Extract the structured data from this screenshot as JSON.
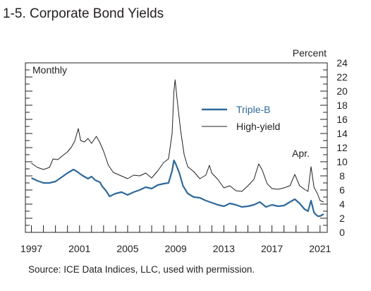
{
  "chart_data": {
    "type": "line",
    "title": "1-5. Corporate Bond Yields",
    "frequency_label": "Monthly",
    "y_unit": "Percent",
    "xlim": [
      1996.5,
      2021.6
    ],
    "ylim": [
      0,
      24
    ],
    "x_ticks": [
      "1997",
      "2001",
      "2005",
      "2009",
      "2013",
      "2017",
      "2021"
    ],
    "y_ticks": [
      "0",
      "2",
      "4",
      "6",
      "8",
      "10",
      "12",
      "14",
      "16",
      "18",
      "20",
      "22",
      "24"
    ],
    "annotation": "Apr.",
    "source": "Source: ICE Data Indices, LLC, used with permission.",
    "legend_position": "upper-right, inside plot",
    "series": [
      {
        "name": "Triple-B",
        "color": "#2e6a9c",
        "points": [
          [
            1997.0,
            7.7
          ],
          [
            1997.5,
            7.3
          ],
          [
            1998.0,
            7.0
          ],
          [
            1998.5,
            7.0
          ],
          [
            1999.0,
            7.2
          ],
          [
            1999.5,
            7.8
          ],
          [
            2000.0,
            8.4
          ],
          [
            2000.5,
            8.9
          ],
          [
            2000.8,
            8.6
          ],
          [
            2001.2,
            8.1
          ],
          [
            2001.7,
            7.6
          ],
          [
            2002.0,
            7.9
          ],
          [
            2002.3,
            7.4
          ],
          [
            2002.7,
            7.1
          ],
          [
            2002.9,
            6.5
          ],
          [
            2003.2,
            5.9
          ],
          [
            2003.5,
            5.1
          ],
          [
            2004.0,
            5.5
          ],
          [
            2004.5,
            5.7
          ],
          [
            2005.0,
            5.3
          ],
          [
            2005.5,
            5.7
          ],
          [
            2006.0,
            6.0
          ],
          [
            2006.5,
            6.4
          ],
          [
            2007.0,
            6.2
          ],
          [
            2007.5,
            6.7
          ],
          [
            2008.0,
            6.9
          ],
          [
            2008.4,
            7.0
          ],
          [
            2008.7,
            8.7
          ],
          [
            2008.85,
            10.2
          ],
          [
            2009.0,
            9.7
          ],
          [
            2009.3,
            8.4
          ],
          [
            2009.6,
            6.6
          ],
          [
            2010.0,
            5.5
          ],
          [
            2010.5,
            5.0
          ],
          [
            2011.0,
            4.9
          ],
          [
            2011.5,
            4.5
          ],
          [
            2012.0,
            4.2
          ],
          [
            2012.5,
            3.9
          ],
          [
            2013.0,
            3.7
          ],
          [
            2013.5,
            4.1
          ],
          [
            2014.0,
            3.9
          ],
          [
            2014.5,
            3.6
          ],
          [
            2015.0,
            3.7
          ],
          [
            2015.5,
            3.9
          ],
          [
            2016.0,
            4.3
          ],
          [
            2016.5,
            3.6
          ],
          [
            2017.0,
            3.9
          ],
          [
            2017.5,
            3.7
          ],
          [
            2018.0,
            3.8
          ],
          [
            2018.5,
            4.3
          ],
          [
            2018.9,
            4.7
          ],
          [
            2019.3,
            4.1
          ],
          [
            2019.7,
            3.3
          ],
          [
            2020.0,
            3.0
          ],
          [
            2020.25,
            4.5
          ],
          [
            2020.5,
            2.8
          ],
          [
            2020.8,
            2.3
          ],
          [
            2021.0,
            2.3
          ],
          [
            2021.3,
            2.6
          ]
        ]
      },
      {
        "name": "High-yield",
        "color": "#231f20",
        "points": [
          [
            1997.0,
            9.8
          ],
          [
            1997.5,
            9.2
          ],
          [
            1998.0,
            8.9
          ],
          [
            1998.5,
            9.2
          ],
          [
            1998.8,
            10.4
          ],
          [
            1999.2,
            10.3
          ],
          [
            1999.7,
            11.0
          ],
          [
            2000.0,
            11.4
          ],
          [
            2000.3,
            12.0
          ],
          [
            2000.6,
            12.9
          ],
          [
            2000.9,
            14.7
          ],
          [
            2001.1,
            13.0
          ],
          [
            2001.4,
            12.8
          ],
          [
            2001.7,
            13.3
          ],
          [
            2002.0,
            12.6
          ],
          [
            2002.4,
            13.6
          ],
          [
            2002.7,
            12.7
          ],
          [
            2003.0,
            11.5
          ],
          [
            2003.4,
            9.5
          ],
          [
            2003.8,
            8.5
          ],
          [
            2004.2,
            8.2
          ],
          [
            2004.6,
            7.9
          ],
          [
            2005.0,
            7.6
          ],
          [
            2005.5,
            8.1
          ],
          [
            2006.0,
            8.0
          ],
          [
            2006.5,
            8.4
          ],
          [
            2007.0,
            7.7
          ],
          [
            2007.5,
            8.7
          ],
          [
            2008.0,
            9.9
          ],
          [
            2008.4,
            10.4
          ],
          [
            2008.7,
            14.0
          ],
          [
            2008.85,
            20.0
          ],
          [
            2008.95,
            21.6
          ],
          [
            2009.1,
            19.0
          ],
          [
            2009.4,
            14.5
          ],
          [
            2009.7,
            11.0
          ],
          [
            2010.0,
            9.3
          ],
          [
            2010.5,
            8.6
          ],
          [
            2011.0,
            7.6
          ],
          [
            2011.5,
            8.1
          ],
          [
            2011.8,
            9.5
          ],
          [
            2012.0,
            8.4
          ],
          [
            2012.5,
            7.5
          ],
          [
            2013.0,
            6.3
          ],
          [
            2013.5,
            6.6
          ],
          [
            2014.0,
            5.9
          ],
          [
            2014.5,
            5.8
          ],
          [
            2015.0,
            6.6
          ],
          [
            2015.5,
            7.5
          ],
          [
            2015.9,
            9.7
          ],
          [
            2016.2,
            8.8
          ],
          [
            2016.6,
            6.9
          ],
          [
            2017.0,
            6.2
          ],
          [
            2017.5,
            6.1
          ],
          [
            2018.0,
            6.3
          ],
          [
            2018.5,
            6.6
          ],
          [
            2018.9,
            8.2
          ],
          [
            2019.3,
            6.6
          ],
          [
            2019.7,
            6.1
          ],
          [
            2020.0,
            5.8
          ],
          [
            2020.25,
            9.3
          ],
          [
            2020.5,
            6.4
          ],
          [
            2020.8,
            5.4
          ],
          [
            2021.0,
            4.5
          ],
          [
            2021.3,
            4.3
          ]
        ]
      }
    ]
  }
}
